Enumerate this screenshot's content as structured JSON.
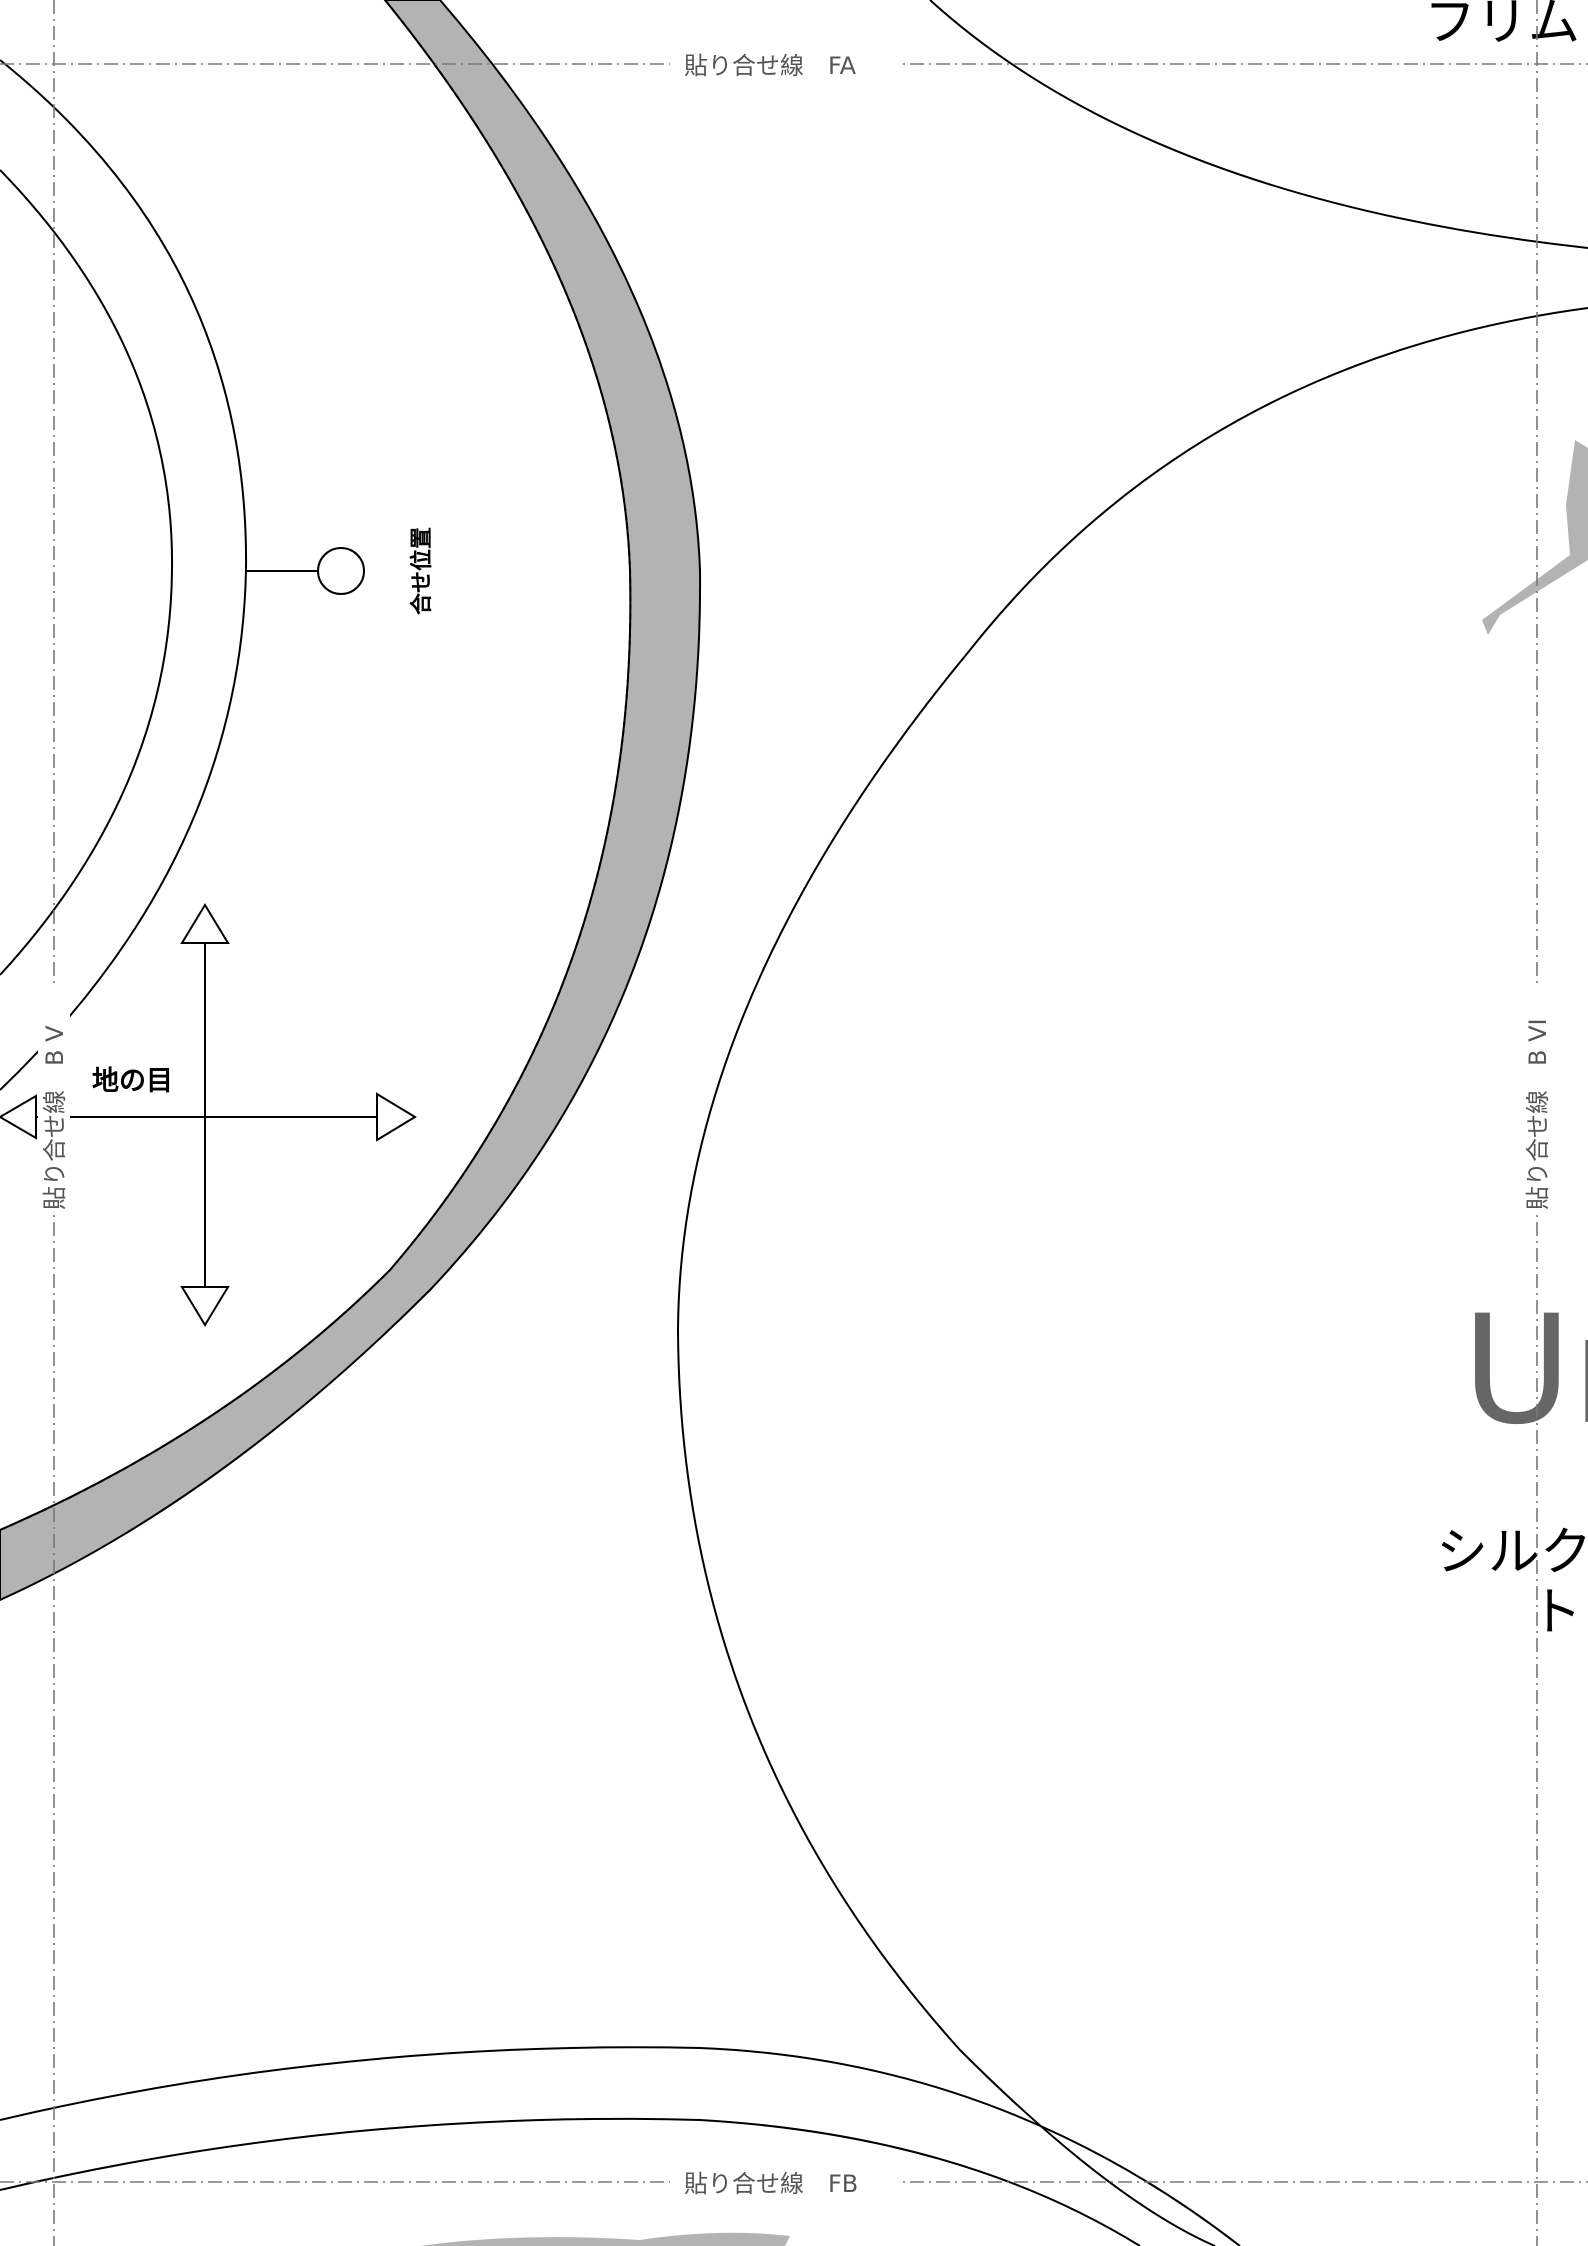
{
  "labels": {
    "fa": "貼り合せ線　FA",
    "fb": "貼り合せ線　FB",
    "bv": "貼り合せ線　B V",
    "bvi": "貼り合せ線　B VI",
    "grain": "地の目",
    "match_position": "合せ位置",
    "top_right": "フリム",
    "brand": "Ur",
    "line1": "シルク",
    "line2": "トッ"
  },
  "colors": {
    "seam_allowance": "#b3b3b3",
    "brand_text": "#666666",
    "tape_line": "#777777"
  }
}
